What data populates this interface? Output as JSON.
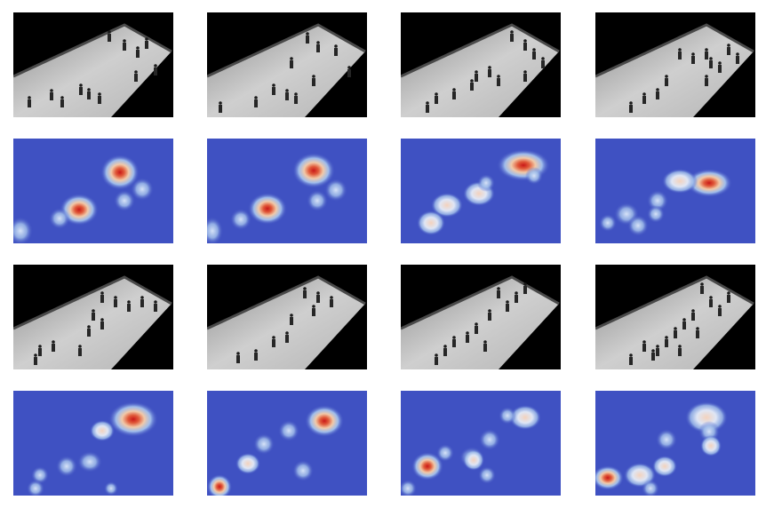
{
  "figure": {
    "panels": [
      {
        "id": "r1c1",
        "kind": "video-frame",
        "scene": "pedestrian-walkway",
        "crowd_level": "medium"
      },
      {
        "id": "r1c2",
        "kind": "video-frame",
        "scene": "pedestrian-walkway",
        "crowd_level": "medium"
      },
      {
        "id": "r1c3",
        "kind": "video-frame",
        "scene": "pedestrian-walkway",
        "crowd_level": "high"
      },
      {
        "id": "r1c4",
        "kind": "video-frame",
        "scene": "pedestrian-walkway",
        "crowd_level": "high"
      },
      {
        "id": "r2c1",
        "kind": "density-map",
        "colormap": "jet-like",
        "background_color": "#3f51c2"
      },
      {
        "id": "r2c2",
        "kind": "density-map",
        "colormap": "jet-like",
        "background_color": "#3f51c2"
      },
      {
        "id": "r2c3",
        "kind": "density-map",
        "colormap": "jet-like",
        "background_color": "#3f51c2"
      },
      {
        "id": "r2c4",
        "kind": "density-map",
        "colormap": "jet-like",
        "background_color": "#3f51c2"
      },
      {
        "id": "r3c1",
        "kind": "video-frame",
        "scene": "pedestrian-walkway",
        "crowd_level": "medium"
      },
      {
        "id": "r3c2",
        "kind": "video-frame",
        "scene": "pedestrian-walkway",
        "crowd_level": "low"
      },
      {
        "id": "r3c3",
        "kind": "video-frame",
        "scene": "pedestrian-walkway",
        "crowd_level": "medium"
      },
      {
        "id": "r3c4",
        "kind": "video-frame",
        "scene": "pedestrian-walkway",
        "crowd_level": "high"
      },
      {
        "id": "r4c1",
        "kind": "density-map",
        "colormap": "jet-like",
        "background_color": "#3f51c2"
      },
      {
        "id": "r4c2",
        "kind": "density-map",
        "colormap": "jet-like",
        "background_color": "#3f51c2"
      },
      {
        "id": "r4c3",
        "kind": "density-map",
        "colormap": "jet-like",
        "background_color": "#3f51c2"
      },
      {
        "id": "r4c4",
        "kind": "density-map",
        "colormap": "jet-like",
        "background_color": "#3f51c2"
      }
    ],
    "colors": {
      "heatmap_background": "#3f51c2",
      "heatmap_low": "#a9c8f0",
      "heatmap_mid": "#f1c9a8",
      "heatmap_high": "#c91818",
      "frame_background": "#000000",
      "walkway": "#c8c8c8"
    }
  }
}
